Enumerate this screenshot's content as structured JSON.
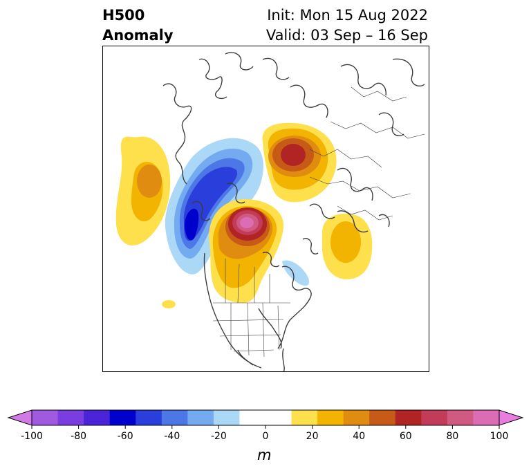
{
  "title": {
    "left_line1": "H500",
    "left_line2": "Anomaly",
    "init": "Init: Mon 15 Aug 2022",
    "valid": "Valid: 03 Sep – 16 Sep"
  },
  "colorbar": {
    "unit": "m",
    "ticks": [
      "-100",
      "-80",
      "-60",
      "-40",
      "-20",
      "0",
      "20",
      "40",
      "60",
      "80",
      "100"
    ],
    "low_extend_color": "#d17ae6",
    "high_extend_color": "#e87ddd",
    "colors": [
      "#a05ae0",
      "#7a3ee0",
      "#4a24d6",
      "#0000cc",
      "#2a3edc",
      "#4d76e6",
      "#74aaf0",
      "#acd8f7",
      "#ffffff",
      "#ffffff",
      "#fde04c",
      "#f2b400",
      "#df8c10",
      "#c85a18",
      "#b02424",
      "#c23c5a",
      "#d05a82",
      "#dc6cb4"
    ]
  },
  "map": {
    "anomalies": [
      {
        "name": "ridge-north-pacific",
        "sign": "positive",
        "peak": 35
      },
      {
        "name": "trough-alaska-west-canada",
        "sign": "negative",
        "peak": -65
      },
      {
        "name": "ridge-hudson-bay",
        "sign": "positive",
        "peak": 95
      },
      {
        "name": "ridge-eurasia",
        "sign": "positive",
        "peak": 65
      },
      {
        "name": "ridge-north-atlantic",
        "sign": "positive",
        "peak": 35
      },
      {
        "name": "ridge-subtropical-pacific",
        "sign": "positive",
        "peak": 15
      },
      {
        "name": "trough-labrador",
        "sign": "negative",
        "peak": -15
      }
    ]
  }
}
